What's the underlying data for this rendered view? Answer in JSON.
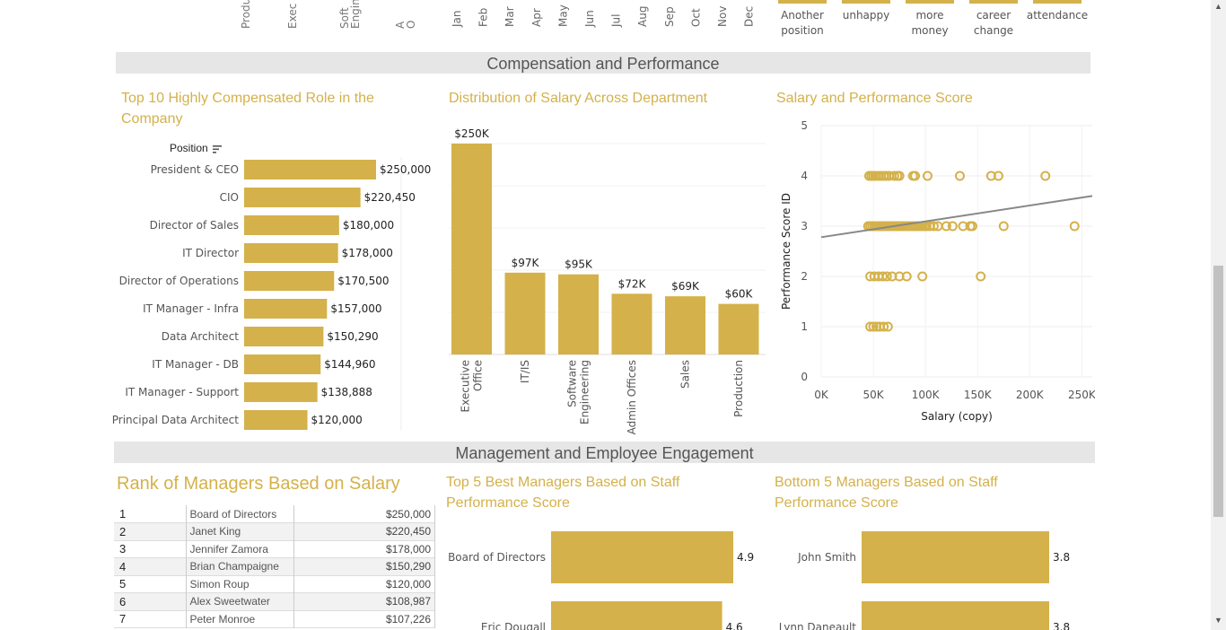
{
  "top_strip": {
    "position_labels": [
      "Produ",
      "Exec",
      "Soft\nEngine",
      "A\nO"
    ],
    "months": [
      "Jan",
      "Feb",
      "Mar",
      "Apr",
      "May",
      "Jun",
      "Jul",
      "Aug",
      "Sep",
      "Oct",
      "Nov",
      "Dec"
    ],
    "reasons": [
      "Another\nposition",
      "unhappy",
      "more\nmoney",
      "career\nchange",
      "attendance"
    ]
  },
  "section_comp": {
    "title": "Compensation and Performance"
  },
  "section_mgmt": {
    "title": "Management and Employee Engagement"
  },
  "bar_color": "#d4b14a",
  "title_color": "#d4b14a",
  "top10": {
    "title": "Top 10 Highly Compensated Role in the Company",
    "column_header": "Position",
    "sort_icon": "sort-descending-icon",
    "chart_data": {
      "type": "bar",
      "orientation": "horizontal",
      "categories": [
        "President & CEO",
        "CIO",
        "Director of Sales",
        "IT Director",
        "Director of Operations",
        "IT Manager - Infra",
        "Data Architect",
        "IT Manager - DB",
        "IT Manager - Support",
        "Principal Data Architect"
      ],
      "values": [
        250000,
        220450,
        180000,
        178000,
        170500,
        157000,
        150290,
        144960,
        138888,
        120000
      ],
      "labels": [
        "$250,000",
        "$220,450",
        "$180,000",
        "$178,000",
        "$170,500",
        "$157,000",
        "$150,290",
        "$144,960",
        "$138,888",
        "$120,000"
      ],
      "xlim": [
        0,
        250000
      ]
    }
  },
  "dept": {
    "title": "Distribution of Salary Across Department",
    "chart_data": {
      "type": "bar",
      "categories": [
        "Executive\nOffice",
        "IT/IS",
        "Software\nEngineering",
        "Admin Offices",
        "Sales",
        "Production"
      ],
      "values": [
        250,
        97,
        95,
        72,
        69,
        60
      ],
      "labels": [
        "$250K",
        "$97K",
        "$95K",
        "$72K",
        "$69K",
        "$60K"
      ],
      "ylim": [
        0,
        250
      ]
    }
  },
  "scatter": {
    "title": "Salary and Performance Score",
    "chart_data": {
      "type": "scatter",
      "xlabel": "Salary (copy)",
      "ylabel": "Performance Score ID",
      "xlim": [
        0,
        260000
      ],
      "ylim": [
        0,
        5
      ],
      "x_ticks": [
        "0K",
        "50K",
        "100K",
        "150K",
        "200K",
        "250K"
      ],
      "x_tick_values": [
        0,
        50000,
        100000,
        150000,
        200000,
        250000
      ],
      "y_ticks": [
        "0",
        "1",
        "2",
        "3",
        "4",
        "5"
      ],
      "y_tick_values": [
        0,
        1,
        2,
        3,
        4,
        5
      ],
      "trend": {
        "x0": 0,
        "y0": 2.78,
        "x1": 260000,
        "y1": 3.6
      },
      "points": [
        {
          "x": 46000,
          "y": 4
        },
        {
          "x": 48000,
          "y": 4
        },
        {
          "x": 50000,
          "y": 4
        },
        {
          "x": 52000,
          "y": 4
        },
        {
          "x": 55000,
          "y": 4
        },
        {
          "x": 57000,
          "y": 4
        },
        {
          "x": 60000,
          "y": 4
        },
        {
          "x": 62000,
          "y": 4
        },
        {
          "x": 65000,
          "y": 4
        },
        {
          "x": 70000,
          "y": 4
        },
        {
          "x": 73000,
          "y": 4
        },
        {
          "x": 75000,
          "y": 4
        },
        {
          "x": 88000,
          "y": 4
        },
        {
          "x": 90000,
          "y": 4
        },
        {
          "x": 102000,
          "y": 4
        },
        {
          "x": 133000,
          "y": 4
        },
        {
          "x": 163000,
          "y": 4
        },
        {
          "x": 170000,
          "y": 4
        },
        {
          "x": 215000,
          "y": 4
        },
        {
          "x": 45000,
          "y": 3
        },
        {
          "x": 47000,
          "y": 3
        },
        {
          "x": 49000,
          "y": 3
        },
        {
          "x": 51000,
          "y": 3
        },
        {
          "x": 53000,
          "y": 3
        },
        {
          "x": 55000,
          "y": 3
        },
        {
          "x": 57000,
          "y": 3
        },
        {
          "x": 59000,
          "y": 3
        },
        {
          "x": 61000,
          "y": 3
        },
        {
          "x": 63000,
          "y": 3
        },
        {
          "x": 65000,
          "y": 3
        },
        {
          "x": 67000,
          "y": 3
        },
        {
          "x": 69000,
          "y": 3
        },
        {
          "x": 71000,
          "y": 3
        },
        {
          "x": 73000,
          "y": 3
        },
        {
          "x": 75000,
          "y": 3
        },
        {
          "x": 77000,
          "y": 3
        },
        {
          "x": 79000,
          "y": 3
        },
        {
          "x": 81000,
          "y": 3
        },
        {
          "x": 83000,
          "y": 3
        },
        {
          "x": 85000,
          "y": 3
        },
        {
          "x": 87000,
          "y": 3
        },
        {
          "x": 89000,
          "y": 3
        },
        {
          "x": 91000,
          "y": 3
        },
        {
          "x": 93000,
          "y": 3
        },
        {
          "x": 95000,
          "y": 3
        },
        {
          "x": 97000,
          "y": 3
        },
        {
          "x": 99000,
          "y": 3
        },
        {
          "x": 101000,
          "y": 3
        },
        {
          "x": 104000,
          "y": 3
        },
        {
          "x": 108000,
          "y": 3
        },
        {
          "x": 112000,
          "y": 3
        },
        {
          "x": 120000,
          "y": 3
        },
        {
          "x": 126000,
          "y": 3
        },
        {
          "x": 136000,
          "y": 3
        },
        {
          "x": 143000,
          "y": 3
        },
        {
          "x": 145000,
          "y": 3
        },
        {
          "x": 175000,
          "y": 3
        },
        {
          "x": 243000,
          "y": 3
        },
        {
          "x": 47000,
          "y": 2
        },
        {
          "x": 51000,
          "y": 2
        },
        {
          "x": 55000,
          "y": 2
        },
        {
          "x": 59000,
          "y": 2
        },
        {
          "x": 63000,
          "y": 2
        },
        {
          "x": 68000,
          "y": 2
        },
        {
          "x": 75000,
          "y": 2
        },
        {
          "x": 82000,
          "y": 2
        },
        {
          "x": 97000,
          "y": 2
        },
        {
          "x": 153000,
          "y": 2
        },
        {
          "x": 47000,
          "y": 1
        },
        {
          "x": 50000,
          "y": 1
        },
        {
          "x": 53000,
          "y": 1
        },
        {
          "x": 56000,
          "y": 1
        },
        {
          "x": 60000,
          "y": 1
        },
        {
          "x": 64000,
          "y": 1
        }
      ]
    }
  },
  "rank": {
    "title": "Rank of Managers Based on Salary",
    "rows": [
      {
        "rank": "1",
        "name": "Board of Directors",
        "salary": "$250,000"
      },
      {
        "rank": "2",
        "name": "Janet King",
        "salary": "$220,450"
      },
      {
        "rank": "3",
        "name": "Jennifer Zamora",
        "salary": "$178,000"
      },
      {
        "rank": "4",
        "name": "Brian Champaigne",
        "salary": "$150,290"
      },
      {
        "rank": "5",
        "name": "Simon Roup",
        "salary": "$120,000"
      },
      {
        "rank": "6",
        "name": "Alex Sweetwater",
        "salary": "$108,987"
      },
      {
        "rank": "7",
        "name": "Peter Monroe",
        "salary": "$107,226"
      }
    ]
  },
  "top5": {
    "title": "Top 5 Best Managers Based on Staff Performance Score",
    "chart_data": {
      "type": "bar",
      "orientation": "horizontal",
      "categories": [
        "Board of Directors",
        "Eric Dougall"
      ],
      "values": [
        4.9,
        4.6
      ],
      "labels": [
        "4.9",
        "4.6"
      ],
      "xlim": [
        0,
        4.9
      ]
    }
  },
  "bottom5": {
    "title": "Bottom 5 Managers Based on Staff Performance Score",
    "chart_data": {
      "type": "bar",
      "orientation": "horizontal",
      "categories": [
        "John Smith",
        "Lynn Daneault"
      ],
      "values": [
        3.8,
        3.8
      ],
      "labels": [
        "3.8",
        "3.8"
      ],
      "xlim": [
        0,
        3.8
      ]
    }
  }
}
